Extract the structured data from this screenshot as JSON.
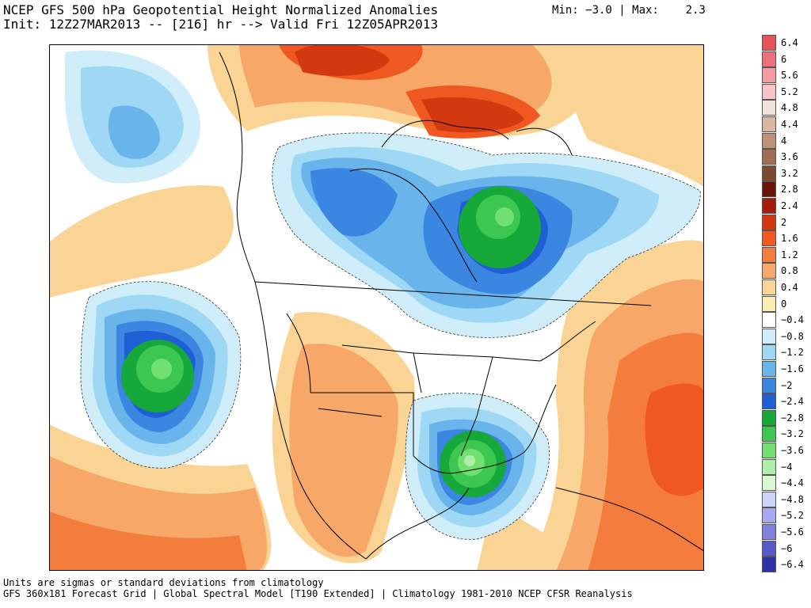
{
  "header": {
    "title": "NCEP GFS 500 hPa Geopotential Height Normalized Anomalies",
    "init_line": "Init: 12Z27MAR2013 -- [216] hr --> Valid Fri 12Z05APR2013",
    "minmax": "Min: −3.0 | Max:    2.3"
  },
  "footer": {
    "line1": "Units are sigmas or standard deviations from climatology",
    "line2": "GFS 360x181 Forecast Grid | Global Spectral Model [T190 Extended] | Climatology 1981-2010 NCEP CFSR Reanalysis"
  },
  "colorbar": {
    "labels": [
      "6.4",
      "6",
      "5.6",
      "5.2",
      "4.8",
      "4.4",
      "4",
      "3.6",
      "3.2",
      "2.8",
      "2.4",
      "2",
      "1.6",
      "1.2",
      "0.8",
      "0.4",
      "0",
      "−0.4",
      "−0.8",
      "−1.2",
      "−1.6",
      "−2",
      "−2.4",
      "−2.8",
      "−3.2",
      "−3.6",
      "−4",
      "−4.4",
      "−4.8",
      "−5.2",
      "−5.6",
      "−6",
      "−6.4"
    ],
    "colors": [
      "#e8505a",
      "#f0707a",
      "#f59aa2",
      "#f8c3c8",
      "#efe2dc",
      "#d8b6a2",
      "#c09078",
      "#a06e52",
      "#7c4a2e",
      "#6a1408",
      "#a81a0a",
      "#d4380e",
      "#f05822",
      "#f47c3c",
      "#f7a868",
      "#fad494",
      "#f9eeb0",
      "#ffffff",
      "#cfeef9",
      "#9fd8f4",
      "#6ab4ec",
      "#3a86e0",
      "#1f5fd6",
      "#16a838",
      "#3cc850",
      "#72e070",
      "#aef0a8",
      "#d8f8d0",
      "#cfd2f8",
      "#a8a8ee",
      "#8080e0",
      "#5858c8",
      "#3030a8"
    ]
  },
  "map": {
    "anomaly_min": -3.0,
    "anomaly_max": 2.3
  }
}
